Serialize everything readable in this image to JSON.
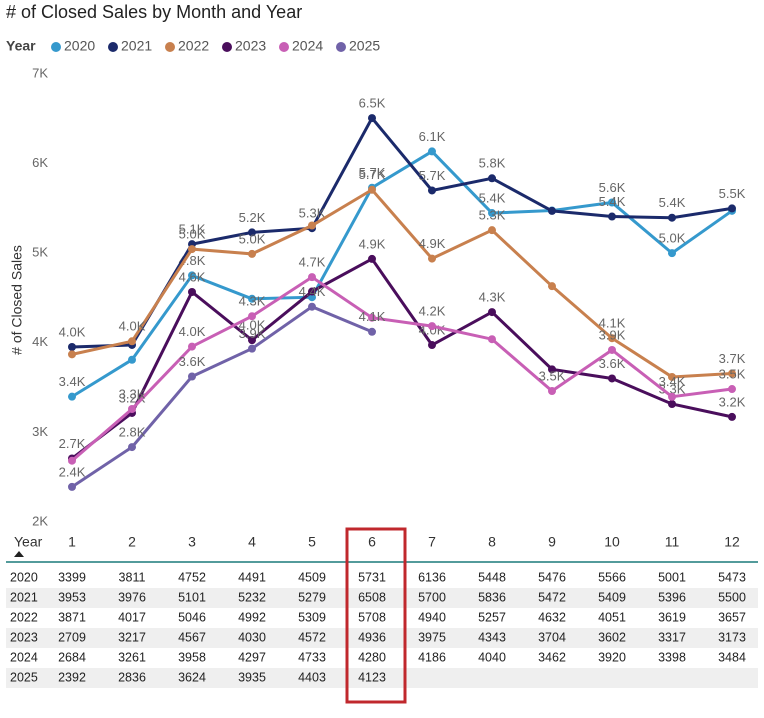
{
  "chart_data": {
    "type": "line",
    "title": "# of Closed Sales by Month and Year",
    "legend_title": "Year",
    "y_label": "# of Closed Sales",
    "categories": [
      "1",
      "2",
      "3",
      "4",
      "5",
      "6",
      "7",
      "8",
      "9",
      "10",
      "11",
      "12"
    ],
    "ylim": [
      2000,
      7000
    ],
    "yticks": [
      {
        "value": 2000,
        "label": "2K"
      },
      {
        "value": 3000,
        "label": "3K"
      },
      {
        "value": 4000,
        "label": "4K"
      },
      {
        "value": 5000,
        "label": "5K"
      },
      {
        "value": 6000,
        "label": "6K"
      },
      {
        "value": 7000,
        "label": "7K"
      }
    ],
    "series": [
      {
        "name": "2020",
        "color": "#3599cd",
        "values": [
          3399,
          3811,
          4752,
          4491,
          4509,
          5731,
          6136,
          5448,
          5476,
          5566,
          5001,
          5473
        ],
        "value_labels": [
          "3.4K",
          null,
          "4.8K",
          null,
          null,
          "5.7K",
          "6.1K",
          "5.4K",
          null,
          "5.6K",
          "5.0K",
          null
        ]
      },
      {
        "name": "2021",
        "color": "#1b2a6b",
        "values": [
          3953,
          3976,
          5101,
          5232,
          5279,
          6508,
          5700,
          5836,
          5472,
          5409,
          5396,
          5500
        ],
        "value_labels": [
          "4.0K",
          null,
          "5.1K",
          "5.2K",
          "5.3K",
          "6.5K",
          "5.7K",
          "5.8K",
          null,
          "5.4K",
          "5.4K",
          "5.5K"
        ]
      },
      {
        "name": "2022",
        "color": "#c8804e",
        "values": [
          3871,
          4017,
          5046,
          4992,
          5309,
          5708,
          4940,
          5257,
          4632,
          4051,
          3619,
          3657
        ],
        "value_labels": [
          null,
          "4.0K",
          "5.0K",
          "5.0K",
          null,
          "5.7K",
          "4.9K",
          "5.3K",
          null,
          "4.1K",
          null,
          "3.7K"
        ]
      },
      {
        "name": "2023",
        "color": "#4a0e5c",
        "values": [
          2709,
          3217,
          4567,
          4030,
          4572,
          4936,
          3975,
          4343,
          3704,
          3602,
          3317,
          3173
        ],
        "value_labels": [
          "2.7K",
          "3.2K",
          "4.6K",
          "4.0K",
          null,
          "4.9K",
          "4.0K",
          "4.3K",
          null,
          "3.6K",
          "3.3K",
          "3.2K"
        ]
      },
      {
        "name": "2024",
        "color": "#c85fb5",
        "values": [
          2684,
          3261,
          3958,
          4297,
          4733,
          4280,
          4186,
          4040,
          3462,
          3920,
          3398,
          3484
        ],
        "value_labels": [
          null,
          "3.3K",
          "4.0K",
          "4.3K",
          "4.7K",
          null,
          "4.2K",
          null,
          "3.5K",
          "3.9K",
          "3.4K",
          "3.5K"
        ]
      },
      {
        "name": "2025",
        "color": "#7062a8",
        "values": [
          2392,
          2836,
          3624,
          3935,
          4403,
          4123,
          null,
          null,
          null,
          null,
          null,
          null
        ],
        "value_labels": [
          "2.4K",
          "2.8K",
          "3.6K",
          "3.9K",
          "4.4K",
          "4.1K",
          null,
          null,
          null,
          null,
          null,
          null
        ]
      }
    ]
  }
}
